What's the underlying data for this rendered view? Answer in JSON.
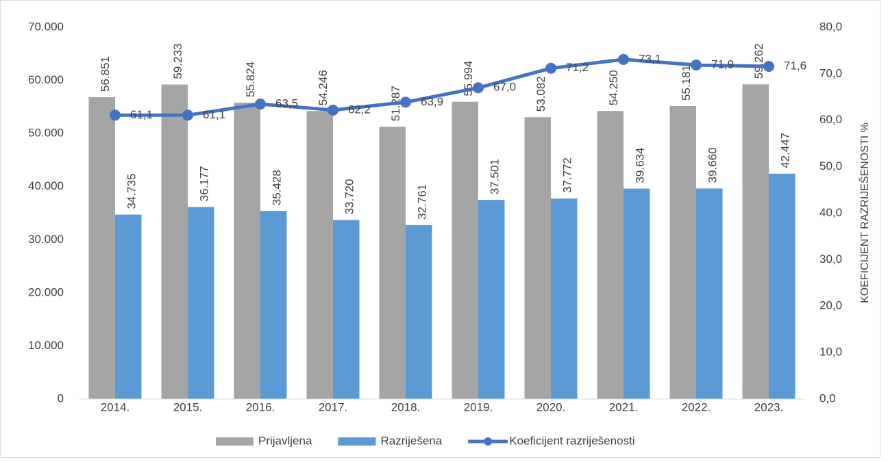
{
  "chart_data": {
    "type": "bar",
    "categories": [
      "2014.",
      "2015.",
      "2016.",
      "2017.",
      "2018.",
      "2019.",
      "2020.",
      "2021.",
      "2022.",
      "2023."
    ],
    "series": [
      {
        "name": "Prijavljena",
        "color": "#a5a5a5",
        "values": [
          56851,
          59233,
          55824,
          54246,
          51287,
          55994,
          53082,
          54250,
          55181,
          59262
        ],
        "value_labels": [
          "56.851",
          "59.233",
          "55.824",
          "54.246",
          "51.287",
          "55.994",
          "53.082",
          "54.250",
          "55.181",
          "59.262"
        ]
      },
      {
        "name": "Razriješena",
        "color": "#5b9bd5",
        "values": [
          34735,
          36177,
          35428,
          33720,
          32761,
          37501,
          37772,
          39634,
          39660,
          42447
        ],
        "value_labels": [
          "34.735",
          "36.177",
          "35.428",
          "33.720",
          "32.761",
          "37.501",
          "37.772",
          "39.634",
          "39.660",
          "42.447"
        ]
      },
      {
        "name": "Koeficijent razriješenosti",
        "color": "#4472c4",
        "type": "line",
        "axis": "y2",
        "values": [
          61.1,
          61.1,
          63.5,
          62.2,
          63.9,
          67.0,
          71.2,
          73.1,
          71.9,
          71.6
        ],
        "value_labels": [
          "61,1",
          "61,1",
          "63,5",
          "62,2",
          "63,9",
          "67,0",
          "71,2",
          "73,1",
          "71,9",
          "71,6"
        ]
      }
    ],
    "ylim": [
      0,
      70000
    ],
    "yticks": [
      0,
      {
        "value": 10000,
        "label": "10.000"
      },
      {
        "value": 20000,
        "label": "20.000"
      },
      {
        "value": 30000,
        "label": "30.000"
      },
      {
        "value": 40000,
        "label": "40.000"
      },
      {
        "value": 50000,
        "label": "50.000"
      },
      {
        "value": 60000,
        "label": "60.000"
      },
      {
        "value": 70000,
        "label": "70.000"
      }
    ],
    "y2lim": [
      0,
      80
    ],
    "y2ticks": [
      {
        "value": 0,
        "label": "0,0"
      },
      {
        "value": 10,
        "label": "10,0"
      },
      {
        "value": 20,
        "label": "20,0"
      },
      {
        "value": 30,
        "label": "30,0"
      },
      {
        "value": 40,
        "label": "40,0"
      },
      {
        "value": 50,
        "label": "50,0"
      },
      {
        "value": 60,
        "label": "60,0"
      },
      {
        "value": 70,
        "label": "70,0"
      },
      {
        "value": 80,
        "label": "80,0"
      }
    ],
    "y2label": "KOEFICIJENT RAZRIJEŠENOSTI %",
    "legend": "bottom"
  }
}
